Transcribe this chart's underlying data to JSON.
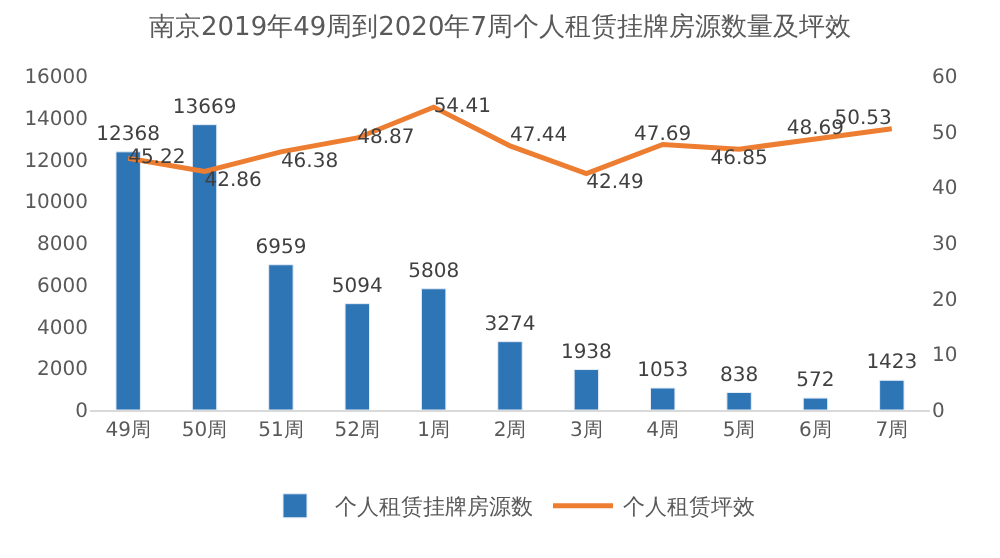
{
  "chart_data": {
    "type": "bar",
    "title": "南京2019年49周到2020年7周个人租赁挂牌房源数量及坪效",
    "categories": [
      "49周",
      "50周",
      "51周",
      "52周",
      "1周",
      "2周",
      "3周",
      "4周",
      "5周",
      "6周",
      "7周"
    ],
    "series": [
      {
        "name": "个人租赁挂牌房源数",
        "color": "#2e75b6",
        "values": [
          12368,
          13669,
          6959,
          5094,
          5808,
          3274,
          1938,
          1053,
          838,
          572,
          1423
        ]
      },
      {
        "name": "个人租赁坪效",
        "type": "line",
        "axis": "y2",
        "color": "#ed7d31",
        "values": [
          45.22,
          42.86,
          46.38,
          48.87,
          54.41,
          47.44,
          42.49,
          47.69,
          46.85,
          48.69,
          50.53
        ]
      }
    ],
    "ylim": [
      0,
      16000
    ],
    "yticks": [
      0,
      2000,
      4000,
      6000,
      8000,
      10000,
      12000,
      14000,
      16000
    ],
    "y2lim": [
      0,
      60
    ],
    "y2ticks": [
      0,
      10,
      20,
      30,
      40,
      50,
      60
    ],
    "grid": false,
    "legend": "bottom",
    "data_labels": true,
    "marker": "none",
    "line_style": "solid"
  }
}
